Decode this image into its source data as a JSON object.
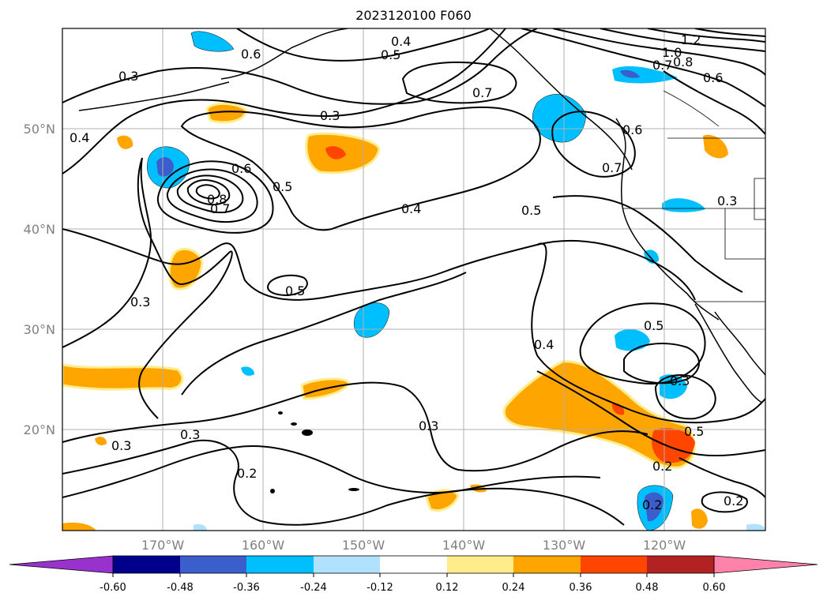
{
  "map": {
    "title": "2023120100 F060",
    "lon_labels": [
      "170°W",
      "160°W",
      "150°W",
      "140°W",
      "130°W",
      "120°W"
    ],
    "lat_labels": [
      "50°N",
      "40°N",
      "30°N",
      "20°N"
    ],
    "lon_range": [
      -180,
      -110
    ],
    "lat_range": [
      10,
      60
    ],
    "grid": true,
    "contour_labels": [
      "0.3",
      "0.4",
      "0.5",
      "0.6",
      "0.7",
      "0.8",
      "1.0",
      "1.2",
      "0.2"
    ],
    "colorbar": {
      "ticks": [
        "-0.60",
        "-0.48",
        "-0.36",
        "-0.24",
        "-0.12",
        "0.12",
        "0.24",
        "0.36",
        "0.48",
        "0.60"
      ],
      "colors": [
        "#9932cc",
        "#00008b",
        "#3a5fcd",
        "#00bfff",
        "#b0e2ff",
        "#ffffff",
        "#ffec8b",
        "#ffa500",
        "#ff4500",
        "#b22222",
        "#ff82ab"
      ]
    }
  }
}
